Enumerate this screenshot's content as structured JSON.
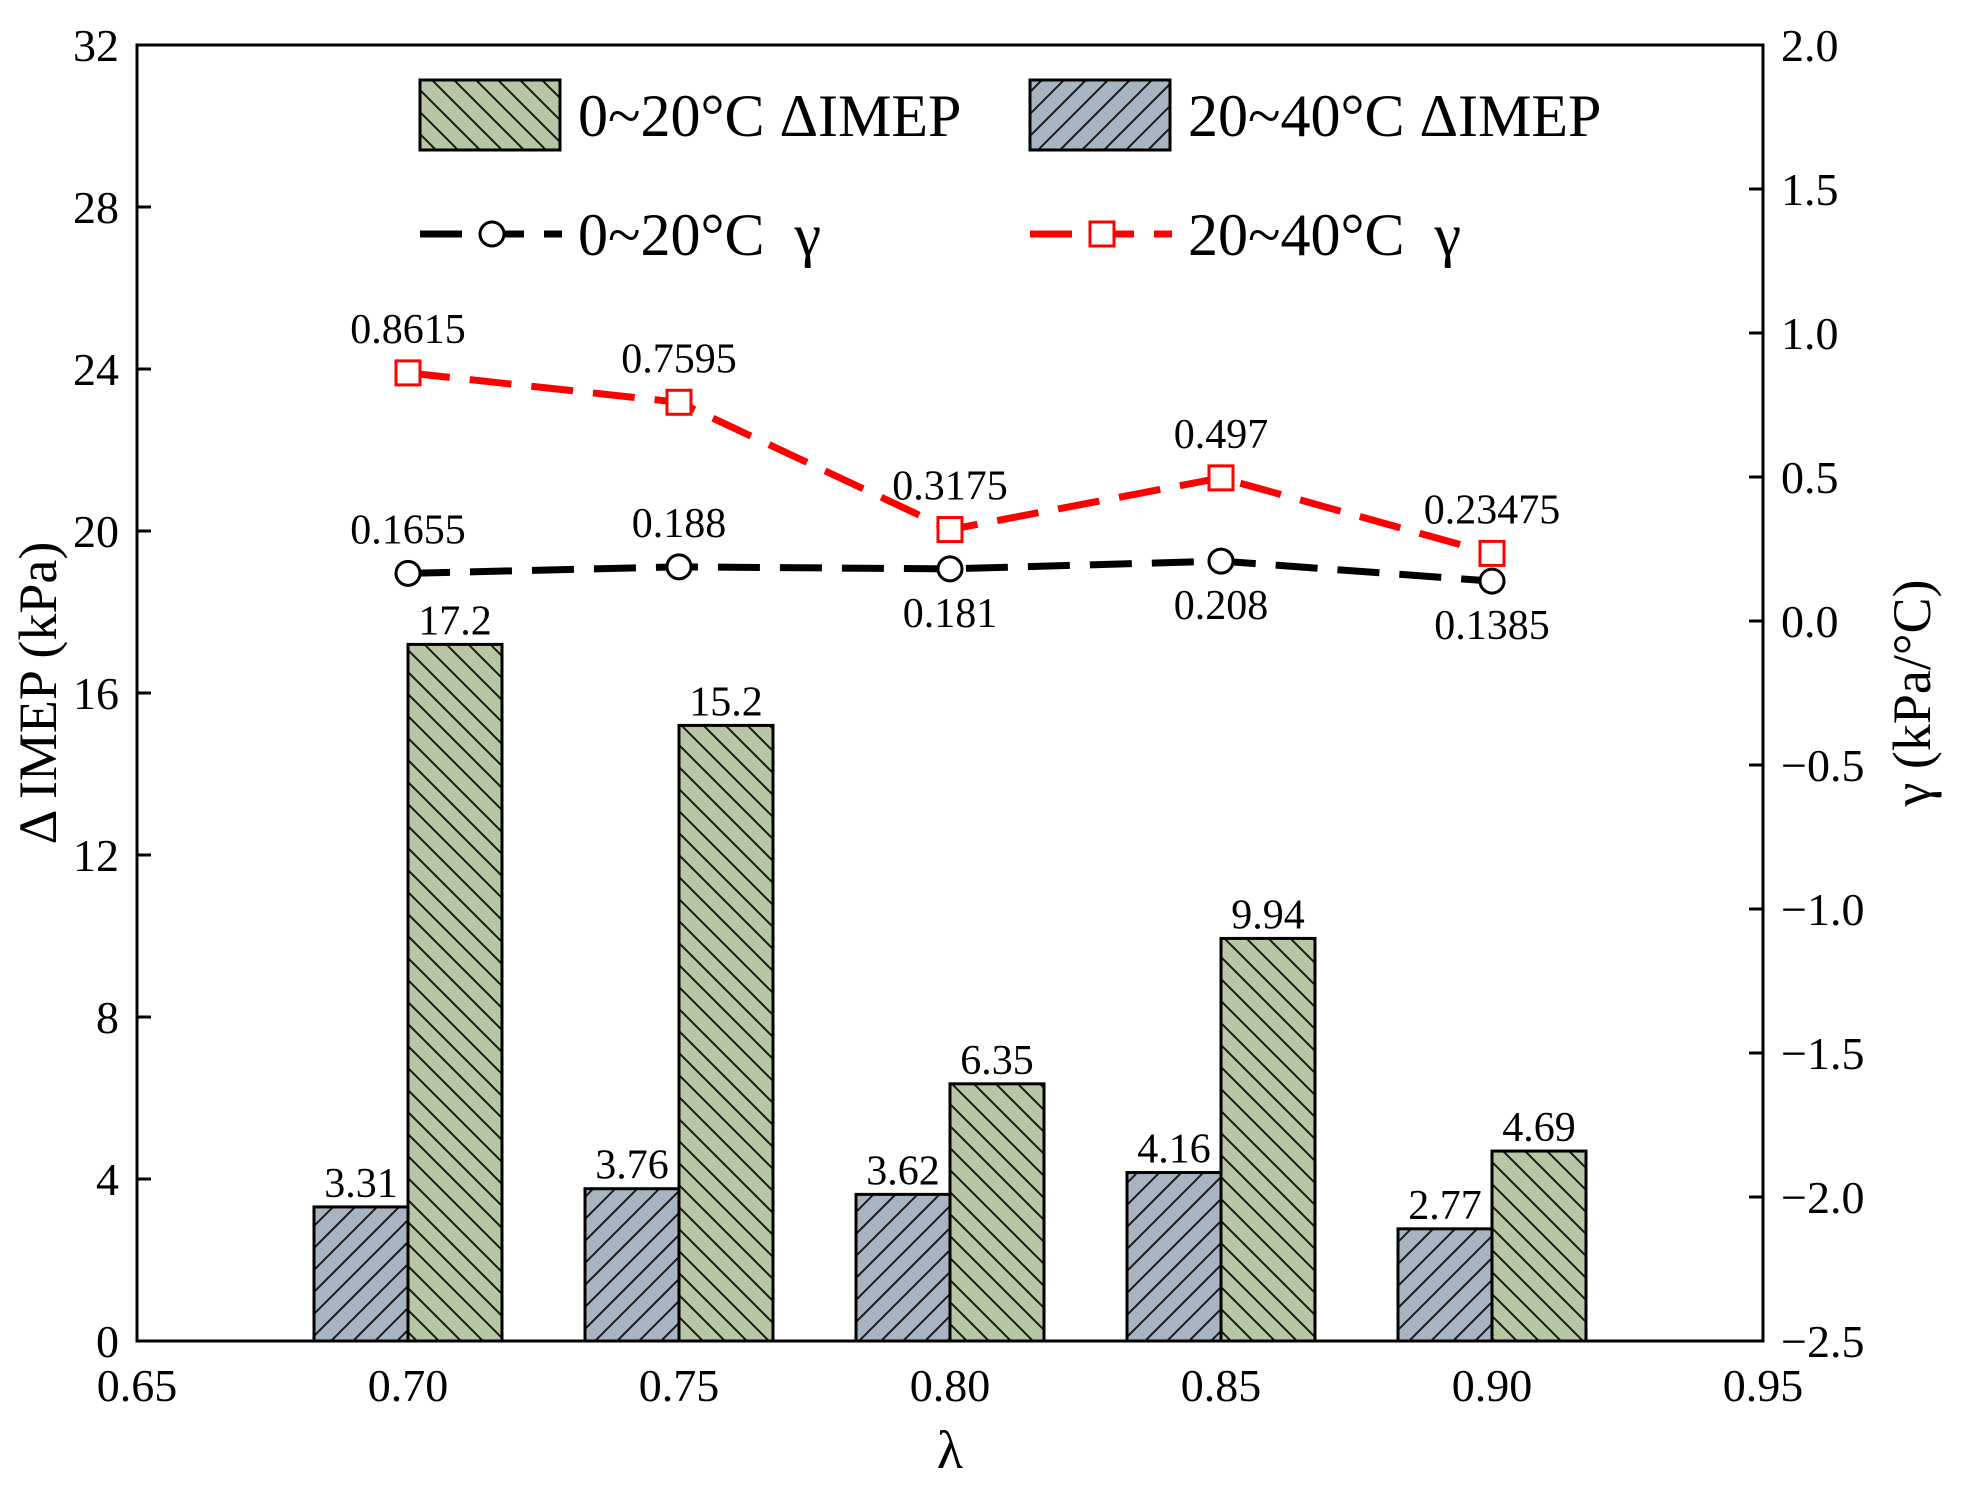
{
  "chart_data": {
    "type": "bar",
    "title": "",
    "xlabel": "λ",
    "ylabel_left": "Δ IMEP (kPa)",
    "ylabel_right": "γ (kPa/°C)",
    "xlim": [
      0.65,
      0.95
    ],
    "x_ticks": [
      "0.65",
      "0.70",
      "0.75",
      "0.80",
      "0.85",
      "0.90",
      "0.95"
    ],
    "ylim_left": [
      0,
      32
    ],
    "y_ticks_left": [
      "0",
      "4",
      "8",
      "12",
      "16",
      "20",
      "24",
      "28",
      "32"
    ],
    "ylim_right": [
      -2.5,
      2.0
    ],
    "y_ticks_right": [
      "−2.5",
      "−2.0",
      "−1.5",
      "−1.0",
      "−0.5",
      "0.0",
      "0.5",
      "1.0",
      "1.5",
      "2.0"
    ],
    "x": [
      0.7,
      0.75,
      0.8,
      0.85,
      0.9
    ],
    "bar_series": [
      {
        "name": "0~20°C ΔIMEP",
        "color": "#b7c6a4",
        "hatch": "backslash",
        "values": [
          17.2,
          15.2,
          6.35,
          9.94,
          4.69
        ],
        "labels": [
          "17.2",
          "15.2",
          "6.35",
          "9.94",
          "4.69"
        ]
      },
      {
        "name": "20~40°C ΔIMEP",
        "color": "#a7b4c1",
        "hatch": "slash",
        "values": [
          3.31,
          3.76,
          3.62,
          4.16,
          2.77
        ],
        "labels": [
          "3.31",
          "3.76",
          "3.62",
          "4.16",
          "2.77"
        ]
      }
    ],
    "line_series": [
      {
        "name": "0~20°C  γ",
        "color": "#000000",
        "marker": "circle",
        "axis": "right",
        "values": [
          0.1655,
          0.188,
          0.181,
          0.208,
          0.1385
        ],
        "labels": [
          "0.1655",
          "0.188",
          "0.181",
          "0.208",
          "0.1385"
        ],
        "label_pos": [
          "above",
          "above",
          "below",
          "below",
          "below"
        ]
      },
      {
        "name": "20~40°C  γ",
        "color": "#ff0000",
        "marker": "square",
        "axis": "right",
        "values": [
          0.8615,
          0.7595,
          0.3175,
          0.497,
          0.23475
        ],
        "labels": [
          "0.8615",
          "0.7595",
          "0.3175",
          "0.497",
          "0.23475"
        ],
        "label_pos": [
          "above",
          "above",
          "above",
          "above",
          "above"
        ]
      }
    ],
    "legend_position": "top",
    "grid": false
  }
}
